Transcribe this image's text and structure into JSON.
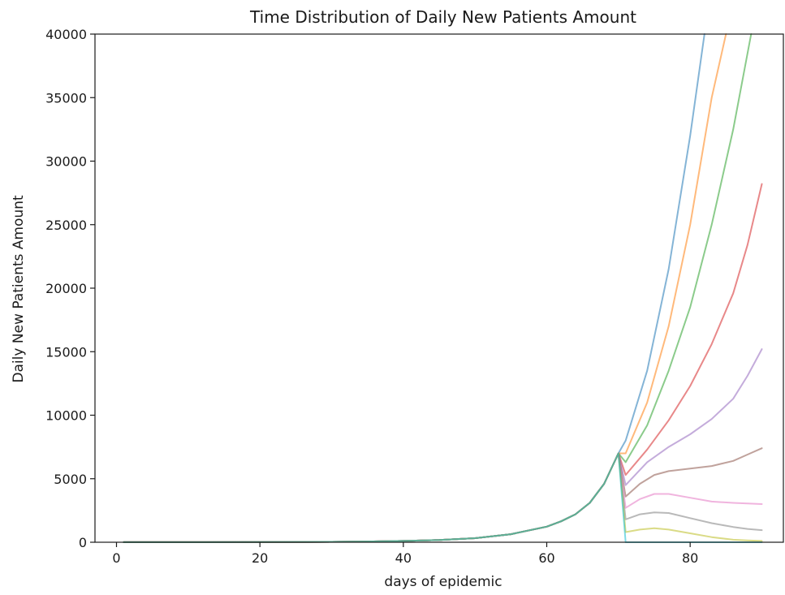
{
  "chart_data": {
    "type": "line",
    "title": "Time Distribution of Daily New Patients Amount",
    "xlabel": "days of epidemic",
    "ylabel": "Daily New Patients Amount",
    "xlim": [
      -3,
      93
    ],
    "ylim": [
      0,
      40000
    ],
    "xticks": [
      0,
      20,
      40,
      60,
      80
    ],
    "yticks": [
      0,
      5000,
      10000,
      15000,
      20000,
      25000,
      30000,
      35000,
      40000
    ],
    "grid": false,
    "legend": "none",
    "common_prefix": {
      "x": [
        1,
        10,
        20,
        30,
        35,
        40,
        45,
        50,
        55,
        60,
        62,
        64,
        66,
        68,
        70
      ],
      "y": [
        5,
        8,
        15,
        30,
        60,
        100,
        170,
        320,
        630,
        1230,
        1650,
        2200,
        3100,
        4600,
        7000
      ]
    },
    "series": [
      {
        "color": "#1f77b4",
        "x": [
          70,
          71,
          74,
          77,
          80,
          82
        ],
        "y": [
          7000,
          8000,
          13500,
          21500,
          32000,
          40000
        ]
      },
      {
        "color": "#ff7f0e",
        "x": [
          70,
          71,
          74,
          77,
          80,
          83,
          85
        ],
        "y": [
          7000,
          7000,
          11000,
          17000,
          25000,
          35000,
          40000
        ]
      },
      {
        "color": "#2ca02c",
        "x": [
          70,
          71,
          74,
          77,
          80,
          83,
          86,
          88.5
        ],
        "y": [
          7000,
          6300,
          9200,
          13500,
          18500,
          25000,
          32500,
          40000
        ]
      },
      {
        "color": "#d62728",
        "x": [
          70,
          71,
          74,
          77,
          80,
          83,
          86,
          88,
          90
        ],
        "y": [
          7000,
          5300,
          7300,
          9600,
          12300,
          15600,
          19600,
          23400,
          28200
        ]
      },
      {
        "color": "#9467bd",
        "x": [
          70,
          71,
          74,
          77,
          80,
          83,
          86,
          88,
          90
        ],
        "y": [
          7000,
          4500,
          6300,
          7500,
          8500,
          9700,
          11300,
          13100,
          15200
        ]
      },
      {
        "color": "#8c564b",
        "x": [
          70,
          71,
          73,
          75,
          77,
          80,
          83,
          86,
          88,
          90
        ],
        "y": [
          7000,
          3600,
          4600,
          5300,
          5600,
          5800,
          6000,
          6400,
          6900,
          7400
        ]
      },
      {
        "color": "#e377c2",
        "x": [
          70,
          71,
          73,
          75,
          77,
          80,
          83,
          86,
          88,
          90
        ],
        "y": [
          7000,
          2700,
          3400,
          3800,
          3800,
          3500,
          3200,
          3100,
          3050,
          3000
        ]
      },
      {
        "color": "#7f7f7f",
        "x": [
          70,
          71,
          73,
          75,
          77,
          80,
          83,
          86,
          88,
          90
        ],
        "y": [
          7000,
          1800,
          2200,
          2350,
          2300,
          1900,
          1500,
          1200,
          1050,
          950
        ]
      },
      {
        "color": "#bcbd22",
        "x": [
          70,
          71,
          73,
          75,
          77,
          80,
          83,
          86,
          88,
          90
        ],
        "y": [
          7000,
          800,
          1000,
          1100,
          1000,
          700,
          400,
          200,
          150,
          100
        ]
      },
      {
        "color": "#17becf",
        "x": [
          70,
          71,
          90
        ],
        "y": [
          7000,
          0,
          0
        ]
      }
    ]
  }
}
